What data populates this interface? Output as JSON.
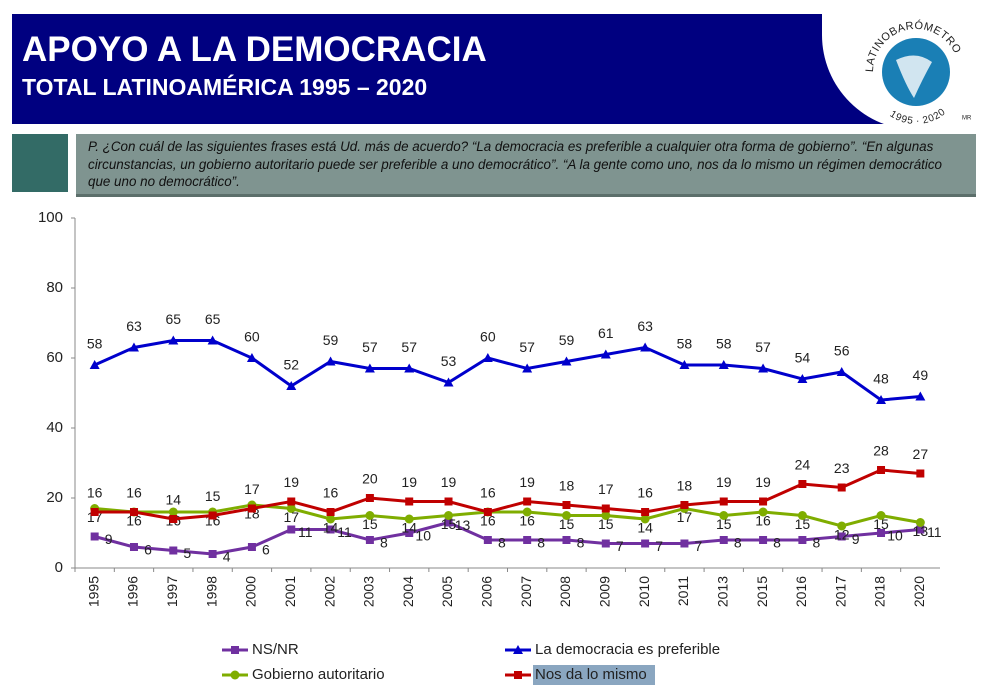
{
  "header": {
    "title": "APOYO A LA DEMOCRACIA",
    "subtitle": "TOTAL LATINOAMÉRICA 1995 – 2020"
  },
  "logo": {
    "name": "LATINOBARÓMETRO",
    "years": "1995 · 2020",
    "mark": "MR"
  },
  "question": "P. ¿Con cuál de las siguientes frases está Ud. más de acuerdo? “La democracia es preferible a cualquier otra forma de gobierno”. “En algunas circunstancias, un gobierno autoritario puede ser preferible a uno democrático”. “A la gente como uno, nos da lo mismo un régimen democrático que uno no democrático”.",
  "chart_data": {
    "type": "line",
    "categories": [
      "1995",
      "1996",
      "1997",
      "1998",
      "2000",
      "2001",
      "2002",
      "2003",
      "2004",
      "2005",
      "2006",
      "2007",
      "2008",
      "2009",
      "2010",
      "2011",
      "2013",
      "2015",
      "2016",
      "2017",
      "2018",
      "2020"
    ],
    "ylim": [
      0,
      100
    ],
    "yticks": [
      0,
      20,
      40,
      60,
      80,
      100
    ],
    "grid": false,
    "series": [
      {
        "name": "NS/NR",
        "color": "#7030a0",
        "marker": "square",
        "values": [
          9,
          6,
          5,
          4,
          6,
          11,
          11,
          8,
          10,
          13,
          8,
          8,
          8,
          7,
          7,
          7,
          8,
          8,
          8,
          9,
          10,
          11
        ]
      },
      {
        "name": "La democracia es preferible",
        "color": "#0000cc",
        "marker": "triangle",
        "values": [
          58,
          63,
          65,
          65,
          60,
          52,
          59,
          57,
          57,
          53,
          60,
          57,
          59,
          61,
          63,
          58,
          58,
          57,
          54,
          56,
          48,
          49
        ]
      },
      {
        "name": "Gobierno autoritario",
        "color": "#7fad00",
        "marker": "circle",
        "values": [
          17,
          16,
          16,
          16,
          18,
          17,
          14,
          15,
          14,
          15,
          16,
          16,
          15,
          15,
          14,
          17,
          15,
          16,
          15,
          12,
          15,
          13
        ]
      },
      {
        "name": "Nos da lo mismo",
        "color": "#c00000",
        "marker": "square",
        "values": [
          16,
          16,
          14,
          15,
          17,
          19,
          16,
          20,
          19,
          19,
          16,
          19,
          18,
          17,
          16,
          18,
          19,
          19,
          24,
          23,
          28,
          27
        ]
      }
    ]
  }
}
